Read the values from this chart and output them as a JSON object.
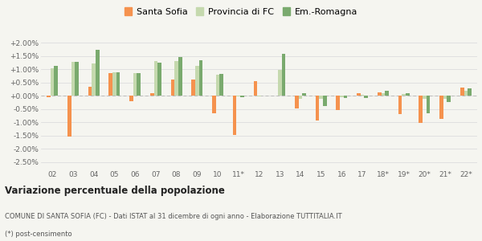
{
  "years": [
    "02",
    "03",
    "04",
    "05",
    "06",
    "07",
    "08",
    "09",
    "10",
    "11*",
    "12",
    "13",
    "14",
    "15",
    "16",
    "17",
    "18*",
    "19*",
    "20*",
    "21*",
    "22*"
  ],
  "santa_sofia": [
    -0.05,
    -1.55,
    0.35,
    0.85,
    -0.2,
    0.1,
    0.6,
    0.6,
    -0.65,
    -1.47,
    0.55,
    0.02,
    -0.48,
    -0.92,
    -0.55,
    0.1,
    0.12,
    -0.68,
    -1.02,
    -0.87,
    0.32
  ],
  "provincia_fc": [
    1.03,
    1.27,
    1.22,
    0.88,
    0.87,
    1.32,
    1.3,
    1.12,
    0.8,
    -0.03,
    -0.03,
    0.97,
    -0.1,
    -0.1,
    -0.05,
    0.05,
    0.1,
    0.08,
    -0.1,
    -0.12,
    0.18
  ],
  "emilia_romagna": [
    1.12,
    1.27,
    1.72,
    0.88,
    0.87,
    1.25,
    1.47,
    1.35,
    0.82,
    -0.05,
    0.0,
    1.57,
    0.1,
    -0.38,
    -0.07,
    -0.07,
    0.18,
    0.1,
    -0.65,
    -0.22,
    0.28
  ],
  "color_santa_sofia": "#f5924e",
  "color_provincia": "#c5d9ae",
  "color_emilia": "#7aaa6e",
  "bg_color": "#f5f5f0",
  "grid_color": "#dddddd",
  "ylim_min": -2.75,
  "ylim_max": 2.25,
  "title_bold": "Variazione percentuale della popolazione",
  "footnote1": "COMUNE DI SANTA SOFIA (FC) - Dati ISTAT al 31 dicembre di ogni anno - Elaborazione TUTTITALIA.IT",
  "footnote2": "(*) post-censimento",
  "legend_labels": [
    "Santa Sofia",
    "Provincia di FC",
    "Em.-Romagna"
  ]
}
